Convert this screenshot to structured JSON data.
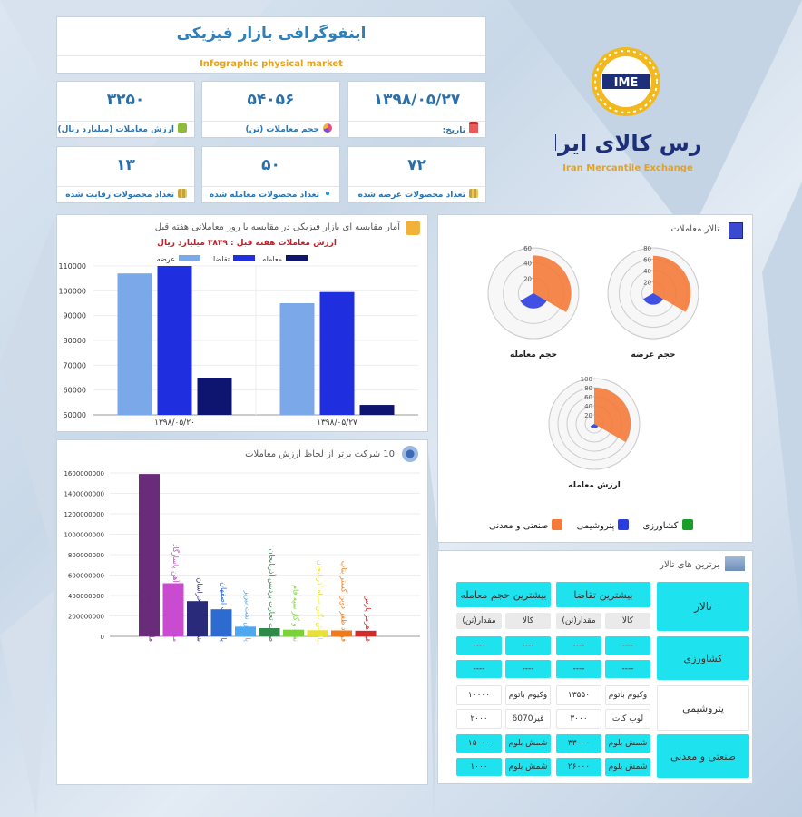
{
  "header": {
    "title_fa": "اینفوگرافی بازار فیزیکی",
    "title_en": "Infographic physical market"
  },
  "stats": [
    {
      "value": "۳۲۵۰",
      "label": "ارزش معاملات (میلیارد ریال)",
      "icon": "money-icon"
    },
    {
      "value": "۵۴۰۵۶",
      "label": "حجم معاملات (تن)",
      "icon": "pie-icon"
    },
    {
      "value": "۱۳۹۸/۰۵/۲۷",
      "label": "تاریخ:",
      "icon": "calendar-icon"
    },
    {
      "value": "۱۳",
      "label": "تعداد محصولات رقابت شده",
      "icon": "coins-icon"
    },
    {
      "value": "۵۰",
      "label": "تعداد محصولات معامله شده",
      "icon": "molecule-icon"
    },
    {
      "value": "۷۲",
      "label": "تعداد محصولات عرضه شده",
      "icon": "coins-icon"
    }
  ],
  "logo": {
    "badge": "IME",
    "name_fa": "بورس کالای ایران",
    "name_en": "Iran Mercantile Exchange"
  },
  "weekly_panel": {
    "title": "آمار مقایسه ای بازار فیزیکی در مقایسه با روز معاملاتی هفته قبل",
    "subtitle": "ارزش معاملات هفته قبل : ۳۸۳۹ میلیارد ریال"
  },
  "top10_panel": {
    "title": "10 شرکت برتر از لحاظ ارزش معاملات"
  },
  "radar_panel": {
    "title": "تالار معاملات",
    "legend": [
      {
        "label": "کشاورزی",
        "color": "#1a9e2a"
      },
      {
        "label": "پتروشیمی",
        "color": "#2b3de0"
      },
      {
        "label": "صنعتی و معدنی",
        "color": "#f47a3a"
      }
    ]
  },
  "table_panel": {
    "title": "برترین های تالار",
    "head_hall": "تالار",
    "head_demand": "بیشترین تقاضا",
    "head_volume": "بیشترین حجم معامله",
    "sub_goods": "کالا",
    "sub_amount": "مقدار(تن)",
    "rows": [
      {
        "hall": "کشاورزی",
        "lines": [
          [
            "----",
            "----",
            "----",
            "----"
          ],
          [
            "----",
            "----",
            "----",
            "----"
          ]
        ]
      },
      {
        "hall": "پتروشیمی",
        "lines": [
          [
            "وکیوم باتوم",
            "۱۳۵۵۰",
            "وکیوم باتوم",
            "۱۰۰۰۰"
          ],
          [
            "لوب کات",
            "۳۰۰۰",
            "قیر6070",
            "۲۰۰۰"
          ]
        ]
      },
      {
        "hall": "صنعتی و معدنی",
        "lines": [
          [
            "شمش بلوم",
            "۳۳۰۰۰",
            "شمش بلوم",
            "۱۵۰۰۰"
          ],
          [
            "شمش بلوم",
            "۲۶۰۰۰",
            "شمش بلوم",
            "۱۰۰۰"
          ]
        ]
      }
    ]
  },
  "chart_data": [
    {
      "type": "bar",
      "categories": [
        "۱۳۹۸/۰۵/۲۰",
        "۱۳۹۸/۰۵/۲۷"
      ],
      "series": [
        {
          "name": "عرضه",
          "color": "#7aa8e8",
          "values": [
            107000,
            95000
          ]
        },
        {
          "name": "تقاضا",
          "color": "#1f2fe0",
          "values": [
            110000,
            99500
          ]
        },
        {
          "name": "معامله",
          "color": "#0d1570",
          "values": [
            65000,
            54000
          ]
        }
      ],
      "ylim": [
        50000,
        110000
      ],
      "yticks": [
        50000,
        60000,
        70000,
        80000,
        90000,
        100000,
        110000
      ],
      "legend": "top"
    },
    {
      "type": "bar",
      "categories": [
        "ملی صنایع مس ایران",
        "مجتمع صنعتی ذوب آهن پاسارگاد",
        "شرکت فولاد خراسان",
        "پالایش نفت اصفهان",
        "پالایش نفت تبریز",
        "صنعت تجارت پردیس آذربایجان",
        "نفت و گاز سپه فام",
        "پالایش نگین سیاه آذربایجان",
        "فولاد ظفر دوین گستر بناب",
        "قیر هرمز پارس"
      ],
      "values": [
        1590000000,
        520000000,
        345000000,
        265000000,
        95000000,
        80000000,
        65000000,
        60000000,
        58000000,
        55000000
      ],
      "colors": [
        "#6a2b7a",
        "#c94bd0",
        "#2a2a7a",
        "#2e6bd1",
        "#4ea8f0",
        "#2f8a4a",
        "#7bd13a",
        "#e8e03a",
        "#f07a1a",
        "#d32a2a"
      ],
      "ylim": [
        0,
        1600000000
      ],
      "yticks": [
        0,
        200000000,
        400000000,
        600000000,
        800000000,
        1000000000,
        1200000000,
        1400000000,
        1600000000
      ]
    },
    {
      "type": "radar",
      "title": "حجم معامله",
      "rmax": 60,
      "rticks": [
        20,
        40,
        60
      ],
      "values": {
        "agri": 0,
        "petro": 20,
        "industry": 50
      }
    },
    {
      "type": "radar",
      "title": "حجم عرضه",
      "rmax": 80,
      "rticks": [
        20,
        40,
        60,
        80
      ],
      "values": {
        "agri": 0,
        "petro": 20,
        "industry": 66
      }
    },
    {
      "type": "radar",
      "title": "ارزش معامله",
      "rmax": 100,
      "rticks": [
        20,
        40,
        60,
        80,
        100
      ],
      "values": {
        "agri": 0,
        "petro": 10,
        "industry": 80
      }
    }
  ]
}
